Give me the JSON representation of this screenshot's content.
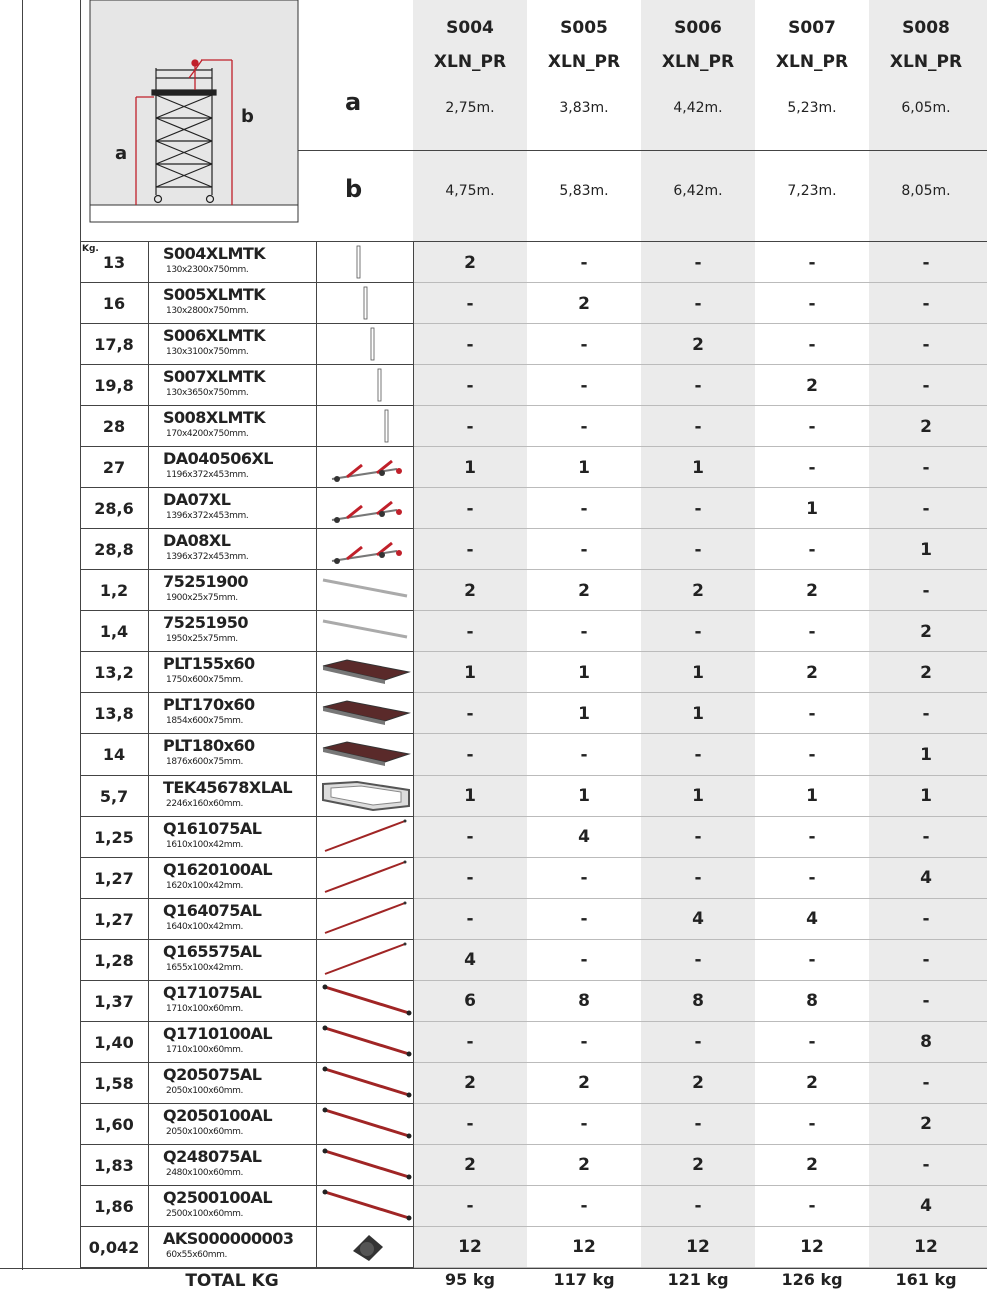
{
  "header": {
    "a_label": "a",
    "b_label": "b",
    "diagram_a": "a",
    "diagram_b": "b",
    "models": [
      {
        "line1": "S004",
        "line2": "XLN_PR",
        "a": "2,75m.",
        "b": "4,75m."
      },
      {
        "line1": "S005",
        "line2": "XLN_PR",
        "a": "3,83m.",
        "b": "5,83m."
      },
      {
        "line1": "S006",
        "line2": "XLN_PR",
        "a": "4,42m.",
        "b": "6,42m."
      },
      {
        "line1": "S007",
        "line2": "XLN_PR",
        "a": "5,23m.",
        "b": "7,23m."
      },
      {
        "line1": "S008",
        "line2": "XLN_PR",
        "a": "6,05m.",
        "b": "8,05m."
      }
    ]
  },
  "kg_label": "Kg.",
  "rows": [
    {
      "kg": "13",
      "code": "S004XLMTK",
      "dims": "130x2300x750mm.",
      "q": [
        "2",
        "-",
        "-",
        "-",
        "-"
      ]
    },
    {
      "kg": "16",
      "code": "S005XLMTK",
      "dims": "130x2800x750mm.",
      "q": [
        "-",
        "2",
        "-",
        "-",
        "-"
      ]
    },
    {
      "kg": "17,8",
      "code": "S006XLMTK",
      "dims": "130x3100x750mm.",
      "q": [
        "-",
        "-",
        "2",
        "-",
        "-"
      ]
    },
    {
      "kg": "19,8",
      "code": "S007XLMTK",
      "dims": "130x3650x750mm.",
      "q": [
        "-",
        "-",
        "-",
        "2",
        "-"
      ]
    },
    {
      "kg": "28",
      "code": "S008XLMTK",
      "dims": "170x4200x750mm.",
      "q": [
        "-",
        "-",
        "-",
        "-",
        "2"
      ]
    },
    {
      "kg": "27",
      "code": "DA040506XL",
      "dims": "1196x372x453mm.",
      "q": [
        "1",
        "1",
        "1",
        "-",
        "-"
      ]
    },
    {
      "kg": "28,6",
      "code": "DA07XL",
      "dims": "1396x372x453mm.",
      "q": [
        "-",
        "-",
        "-",
        "1",
        "-"
      ]
    },
    {
      "kg": "28,8",
      "code": "DA08XL",
      "dims": "1396x372x453mm.",
      "q": [
        "-",
        "-",
        "-",
        "-",
        "1"
      ]
    },
    {
      "kg": "1,2",
      "code": "75251900",
      "dims": "1900x25x75mm.",
      "q": [
        "2",
        "2",
        "2",
        "2",
        "-"
      ]
    },
    {
      "kg": "1,4",
      "code": "75251950",
      "dims": "1950x25x75mm.",
      "q": [
        "-",
        "-",
        "-",
        "-",
        "2"
      ]
    },
    {
      "kg": "13,2",
      "code": "PLT155x60",
      "dims": "1750x600x75mm.",
      "q": [
        "1",
        "1",
        "1",
        "2",
        "2"
      ]
    },
    {
      "kg": "13,8",
      "code": "PLT170x60",
      "dims": "1854x600x75mm.",
      "q": [
        "-",
        "1",
        "1",
        "-",
        "-"
      ]
    },
    {
      "kg": "14",
      "code": "PLT180x60",
      "dims": "1876x600x75mm.",
      "q": [
        "-",
        "-",
        "-",
        "-",
        "1"
      ]
    },
    {
      "kg": "5,7",
      "code": "TEK45678XLAL",
      "dims": "2246x160x60mm.",
      "q": [
        "1",
        "1",
        "1",
        "1",
        "1"
      ]
    },
    {
      "kg": "1,25",
      "code": "Q161075AL",
      "dims": "1610x100x42mm.",
      "q": [
        "-",
        "4",
        "-",
        "-",
        "-"
      ]
    },
    {
      "kg": "1,27",
      "code": "Q1620100AL",
      "dims": "1620x100x42mm.",
      "q": [
        "-",
        "-",
        "-",
        "-",
        "4"
      ]
    },
    {
      "kg": "1,27",
      "code": "Q164075AL",
      "dims": "1640x100x42mm.",
      "q": [
        "-",
        "-",
        "4",
        "4",
        "-"
      ]
    },
    {
      "kg": "1,28",
      "code": "Q165575AL",
      "dims": "1655x100x42mm.",
      "q": [
        "4",
        "-",
        "-",
        "-",
        "-"
      ]
    },
    {
      "kg": "1,37",
      "code": "Q171075AL",
      "dims": "1710x100x60mm.",
      "q": [
        "6",
        "8",
        "8",
        "8",
        "-"
      ]
    },
    {
      "kg": "1,40",
      "code": "Q1710100AL",
      "dims": "1710x100x60mm.",
      "q": [
        "-",
        "-",
        "-",
        "-",
        "8"
      ]
    },
    {
      "kg": "1,58",
      "code": "Q205075AL",
      "dims": "2050x100x60mm.",
      "q": [
        "2",
        "2",
        "2",
        "2",
        "-"
      ]
    },
    {
      "kg": "1,60",
      "code": "Q2050100AL",
      "dims": "2050x100x60mm.",
      "q": [
        "-",
        "-",
        "-",
        "-",
        "2"
      ]
    },
    {
      "kg": "1,83",
      "code": "Q248075AL",
      "dims": "2480x100x60mm.",
      "q": [
        "2",
        "2",
        "2",
        "2",
        "-"
      ]
    },
    {
      "kg": "1,86",
      "code": "Q2500100AL",
      "dims": "2500x100x60mm.",
      "q": [
        "-",
        "-",
        "-",
        "-",
        "4"
      ]
    },
    {
      "kg": "0,042",
      "code": "AKS000000003",
      "dims": "60x55x60mm.",
      "q": [
        "12",
        "12",
        "12",
        "12",
        "12"
      ]
    }
  ],
  "total": {
    "label": "TOTAL KG",
    "values": [
      "95 kg",
      "117 kg",
      "121 kg",
      "126 kg",
      "161 kg"
    ]
  }
}
